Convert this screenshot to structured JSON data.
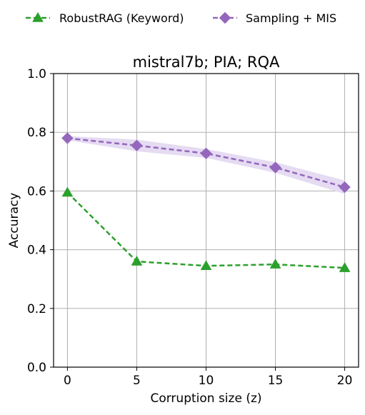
{
  "chart_data": {
    "type": "line",
    "title": "mistral7b; PIA; RQA",
    "xlabel": "Corruption size (z)",
    "ylabel": "Accuracy",
    "x": [
      0,
      5,
      10,
      15,
      20
    ],
    "xticks": [
      "0",
      "5",
      "10",
      "15",
      "20"
    ],
    "yticks": [
      "0.0",
      "0.2",
      "0.4",
      "0.6",
      "0.8",
      "1.0"
    ],
    "ylim": [
      0.0,
      1.0
    ],
    "xlim": [
      -1,
      21
    ],
    "grid": true,
    "legend_position": "top, above plot",
    "series": [
      {
        "name": "RobustRAG (Keyword)",
        "values": [
          0.595,
          0.36,
          0.345,
          0.35,
          0.338
        ],
        "color": "#2ca02c",
        "marker": "triangle",
        "linestyle": "dashed"
      },
      {
        "name": "Sampling + MIS",
        "values": [
          0.78,
          0.755,
          0.728,
          0.68,
          0.613
        ],
        "band_lower": [
          0.773,
          0.735,
          0.713,
          0.662,
          0.59
        ],
        "band_upper": [
          0.787,
          0.775,
          0.743,
          0.698,
          0.636
        ],
        "color": "#9467bd",
        "band_color": "#e5dbf2",
        "marker": "diamond",
        "linestyle": "dashed"
      }
    ]
  }
}
